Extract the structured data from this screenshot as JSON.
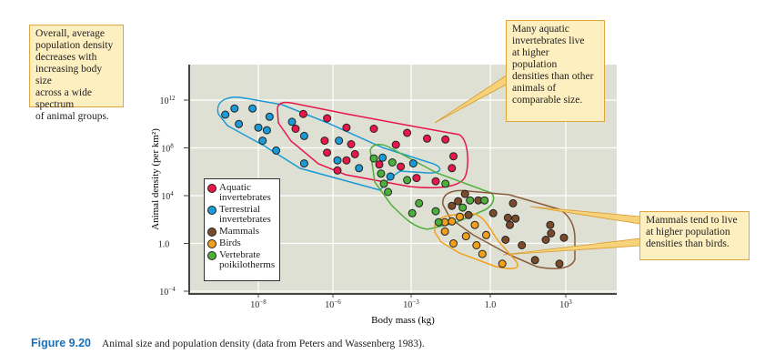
{
  "chart_data": {
    "type": "scatter",
    "xlabel": "Body mass (kg)",
    "ylabel": "Animal density (per km²)",
    "x_scale": "log",
    "y_scale": "log",
    "x_ticks": [
      {
        "value": 1e-08,
        "label": "10",
        "exp": "−8"
      },
      {
        "value": 1e-06,
        "label": "10",
        "exp": "−6"
      },
      {
        "value": 0.001,
        "label": "10",
        "exp": "−3"
      },
      {
        "value": 1,
        "label": "1.0",
        "exp": ""
      },
      {
        "value": 1000.0,
        "label": "10",
        "exp": "3"
      }
    ],
    "y_ticks": [
      {
        "value": 1000000000000.0,
        "label": "10",
        "exp": "12"
      },
      {
        "value": 100000000.0,
        "label": "10",
        "exp": "8"
      },
      {
        "value": 10000.0,
        "label": "10",
        "exp": "4"
      },
      {
        "value": 1,
        "label": "1.0",
        "exp": ""
      },
      {
        "value": 0.0001,
        "label": "10",
        "exp": "−4"
      }
    ],
    "grid": true,
    "legend_placement": "lower-left",
    "series": [
      {
        "name": "Aquatic invertebrates",
        "name_lines": [
          "Aquatic",
          "invertebrates"
        ],
        "color": "#e8174a",
        "outline": "#e8174a",
        "points": [
          [
            1.6e-07,
            70000000000.0
          ],
          [
            7e-07,
            30000000000.0
          ],
          [
            1e-07,
            4000000000.0
          ],
          [
            3.3e-06,
            5000000000.0
          ],
          [
            3.7e-05,
            4000000000.0
          ],
          [
            6e-07,
            400000000.0
          ],
          [
            5e-06,
            200000000.0
          ],
          [
            7e-07,
            40000000.0
          ],
          [
            7e-06,
            30000000.0
          ],
          [
            3.3e-06,
            9000000.0
          ],
          [
            1.5e-06,
            1300000.0
          ],
          [
            6e-05,
            4000000.0
          ],
          [
            0.0004,
            2700000.0
          ],
          [
            0.00026,
            180000000.0
          ],
          [
            0.0007,
            1800000000.0
          ],
          [
            0.004,
            600000000.0
          ],
          [
            0.02,
            500000000.0
          ],
          [
            0.04,
            20000000.0
          ],
          [
            0.035,
            2000000.0
          ],
          [
            0.0016,
            300000.0
          ],
          [
            0.0085,
            160000.0
          ]
        ]
      },
      {
        "name": "Terrestrial invertebrates",
        "name_lines": [
          "Terrestrial",
          "invertebrates"
        ],
        "color": "#1a9ad6",
        "outline": "#1a9ad6",
        "points": [
          [
            1.3e-09,
            60000000000.0
          ],
          [
            2.3e-09,
            200000000000.0
          ],
          [
            7e-09,
            200000000000.0
          ],
          [
            2e-08,
            40000000000.0
          ],
          [
            3e-09,
            10000000000.0
          ],
          [
            1e-08,
            5000000000.0
          ],
          [
            1.7e-08,
            3000000000.0
          ],
          [
            1.3e-08,
            400000000.0
          ],
          [
            3e-08,
            60000000.0
          ],
          [
            8e-08,
            15000000000.0
          ],
          [
            1.7e-07,
            1000000000.0
          ],
          [
            1.7e-07,
            5000000.0
          ],
          [
            1.7e-06,
            400000000.0
          ],
          [
            1.5e-06,
            9000000.0
          ],
          [
            1e-05,
            2000000.0
          ],
          [
            8e-05,
            15000000.0
          ],
          [
            0.00016,
            400000.0
          ],
          [
            0.0012,
            5000000.0
          ]
        ]
      },
      {
        "name": "Mammals",
        "name_lines": [
          "Mammals"
        ],
        "color": "#7a4a2a",
        "outline": "#8b5a3a",
        "points": [
          [
            0.11,
            14000.0
          ],
          [
            0.06,
            3400.0
          ],
          [
            0.035,
            1400.0
          ],
          [
            0.35,
            4000.0
          ],
          [
            0.15,
            240
          ],
          [
            1.3,
            340
          ],
          [
            8,
            2300.0
          ],
          [
            5,
            140
          ],
          [
            10,
            120
          ],
          [
            6,
            35
          ],
          [
            240,
            35
          ],
          [
            260,
            7
          ],
          [
            160,
            2
          ],
          [
            850,
            3
          ],
          [
            4,
            2
          ],
          [
            18,
            0.7
          ],
          [
            60,
            0.04
          ],
          [
            560,
            0.02
          ]
        ]
      },
      {
        "name": "Birds",
        "name_lines": [
          "Birds"
        ],
        "color": "#f2a019",
        "outline": "#f2a019",
        "points": [
          [
            0.019,
            60
          ],
          [
            0.035,
            70
          ],
          [
            0.07,
            170
          ],
          [
            0.26,
            35
          ],
          [
            0.019,
            10
          ],
          [
            0.12,
            4
          ],
          [
            0.7,
            5
          ],
          [
            0.04,
            1
          ],
          [
            0.3,
            0.7
          ],
          [
            0.5,
            0.13
          ],
          [
            3,
            0.02
          ]
        ]
      },
      {
        "name": "Vertebrate poikilotherms",
        "name_lines": [
          "Vertebrate",
          "poikilotherms"
        ],
        "color": "#4caf3a",
        "outline": "#4caf3a",
        "points": [
          [
            3.7e-05,
            13000000.0
          ],
          [
            0.00019,
            6000000.0
          ],
          [
            7e-05,
            700000.0
          ],
          [
            0.0007,
            200000.0
          ],
          [
            0.02,
            100000.0
          ],
          [
            9e-05,
            100000.0
          ],
          [
            0.00013,
            20000.0
          ],
          [
            0.002,
            2300.0
          ],
          [
            0.0011,
            340
          ],
          [
            0.0085,
            500
          ],
          [
            0.011,
            60
          ],
          [
            0.09,
            1000.0
          ],
          [
            0.17,
            4000.0
          ],
          [
            0.6,
            4000.0
          ]
        ]
      }
    ],
    "annotations": [
      "Overall, average population density decreases with increasing body size across a wide spectrum of animal groups.",
      "Many aquatic invertebrates live at higher population densities than other animals of comparable size.",
      "Mammals tend to live at higher population densities than birds."
    ]
  },
  "notes": {
    "overall": [
      "Overall, average",
      "population density",
      "decreases with",
      "increasing body size",
      "across a wide spectrum",
      "of animal groups."
    ],
    "aquatic": [
      "Many aquatic",
      "invertebrates live",
      "at higher",
      "population",
      "densities than other",
      "animals of",
      "comparable size."
    ],
    "mammals": [
      "Mammals tend to live",
      "at higher population",
      "densities than birds."
    ]
  },
  "caption": {
    "figure": "Figure 9.20",
    "text": "Animal size and population density (data from Peters and Wassenberg 1983)."
  },
  "colors": {
    "plot_bg": "#dfe0d4",
    "note_bg": "#fdefbf",
    "note_border": "#e0a63c",
    "caption_accent": "#1b6fb5"
  }
}
